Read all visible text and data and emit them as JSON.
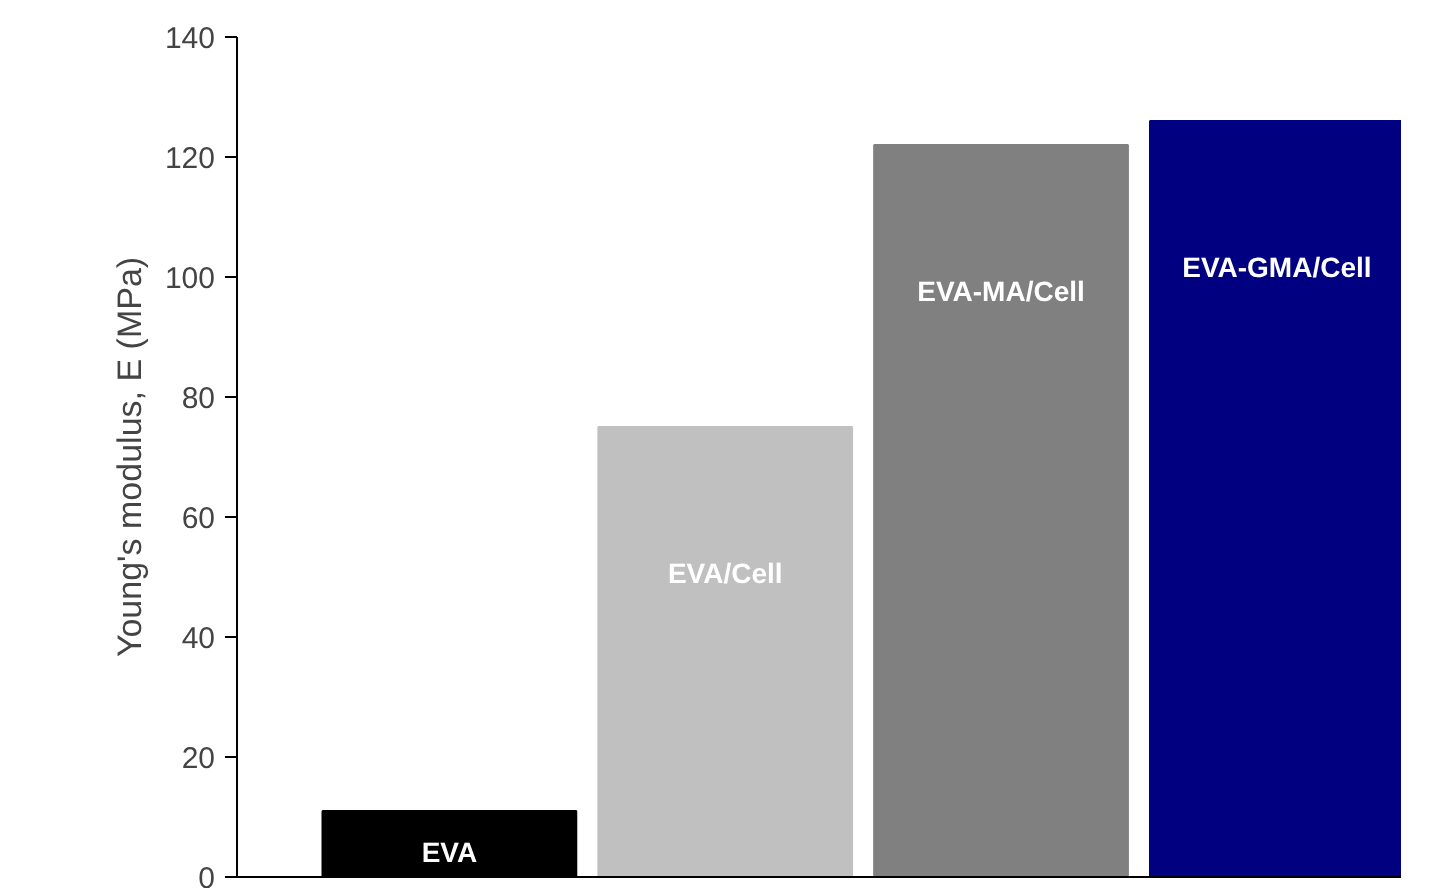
{
  "chart_data": {
    "type": "bar",
    "ylabel": "Young's modulus, E (MPa)",
    "categories": [
      "EVA",
      "EVA/Cell",
      "EVA-MA/Cell",
      "EVA-GMA/Cell"
    ],
    "values": [
      11,
      75,
      122,
      126
    ],
    "colors": [
      "#000000",
      "#c0c0c0",
      "#808080",
      "#000080"
    ],
    "ylim": [
      0,
      140
    ],
    "yticks": [
      0,
      20,
      40,
      60,
      80,
      100,
      120,
      140
    ],
    "grid": false,
    "tick_labels": "y"
  }
}
